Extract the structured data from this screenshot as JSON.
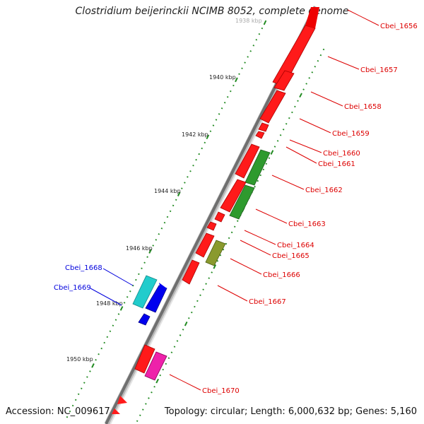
{
  "title": "Clostridium beijerinckii NCIMB 8052, complete genome",
  "accession": "Accession: NC_009617",
  "summary": "Topology: circular; Length: 6,000,632 bp; Genes: 5,160",
  "scale_labels": [
    "1938 kbp",
    "1940 kbp",
    "1942 kbp",
    "1944 kbp",
    "1946 kbp",
    "1948 kbp",
    "1950 kbp"
  ],
  "genes": [
    {
      "label": "Cbei_1656",
      "color": "#dd0000"
    },
    {
      "label": "Cbei_1657",
      "color": "#dd0000"
    },
    {
      "label": "Cbei_1658",
      "color": "#dd0000"
    },
    {
      "label": "Cbei_1659",
      "color": "#dd0000"
    },
    {
      "label": "Cbei_1660",
      "color": "#dd0000"
    },
    {
      "label": "Cbei_1661",
      "color": "#dd0000"
    },
    {
      "label": "Cbei_1662",
      "color": "#dd0000"
    },
    {
      "label": "Cbei_1663",
      "color": "#dd0000"
    },
    {
      "label": "Cbei_1664",
      "color": "#dd0000"
    },
    {
      "label": "Cbei_1665",
      "color": "#dd0000"
    },
    {
      "label": "Cbei_1666",
      "color": "#dd0000"
    },
    {
      "label": "Cbei_1667",
      "color": "#dd0000"
    },
    {
      "label": "Cbei_1668",
      "color": "#0000cc"
    },
    {
      "label": "Cbei_1669",
      "color": "#0000cc"
    },
    {
      "label": "Cbei_1670",
      "color": "#dd0000"
    }
  ],
  "colors": {
    "forward_gene": "#ff0000",
    "reverse_gene": "#0000ee",
    "rna_green": "#2e8b2e",
    "olive": "#8a9a2e",
    "cyan": "#22cccc",
    "magenta": "#ee22aa",
    "backbone": "#888888",
    "ticks": "#228b22"
  }
}
